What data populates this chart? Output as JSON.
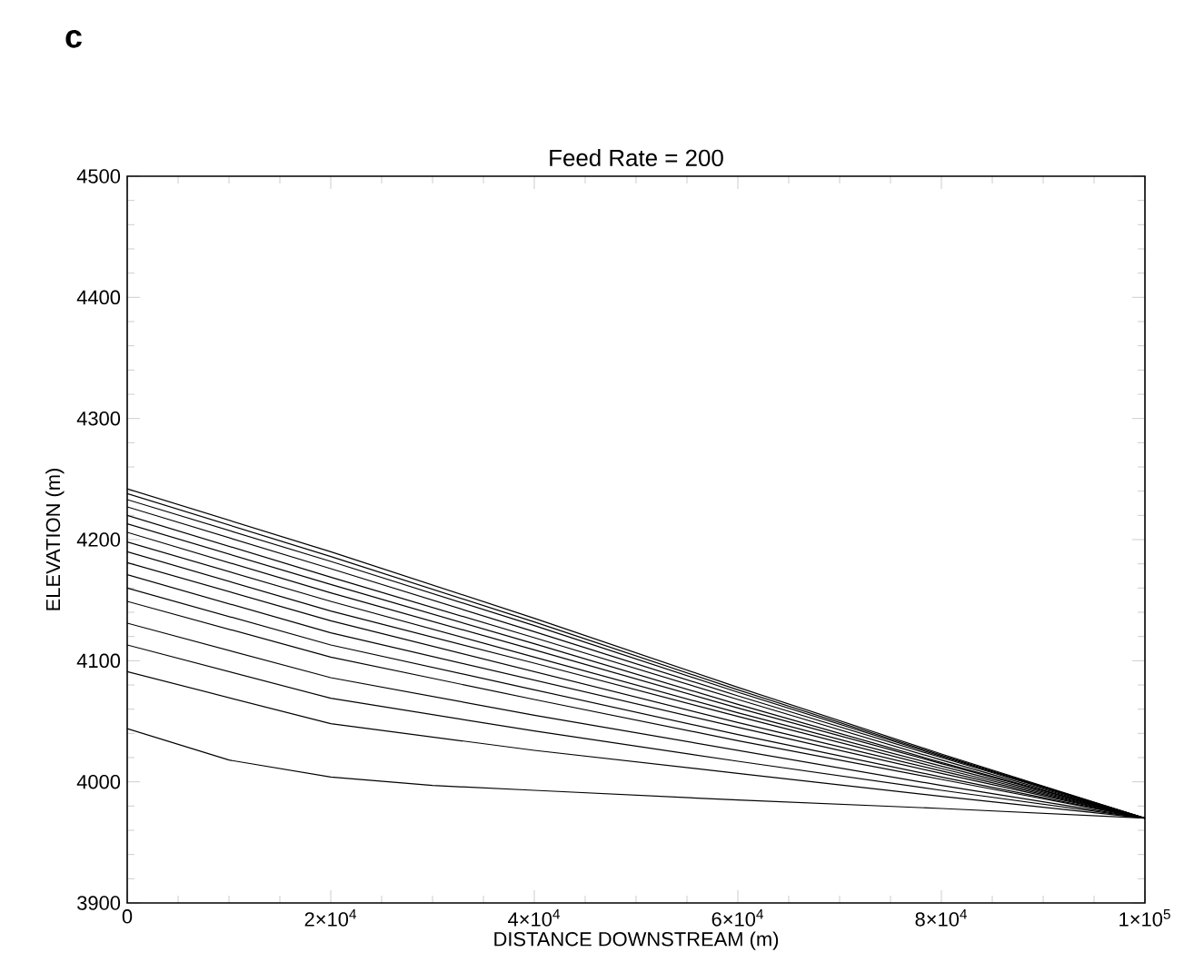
{
  "chart_data": {
    "type": "line",
    "title": "Feed Rate = 200",
    "xlabel": "DISTANCE DOWNSTREAM (m)",
    "ylabel": "ELEVATION (m)",
    "annotations": [
      "c"
    ],
    "x": [
      0,
      20000,
      40000,
      60000,
      80000,
      100000
    ],
    "series": [
      {
        "color": "#000000",
        "x": [
          0,
          10000,
          20000,
          30000,
          40000,
          60000,
          80000,
          100000
        ],
        "values": [
          4044,
          4018,
          4004,
          3997,
          3993,
          3985,
          3978,
          3970
        ]
      },
      {
        "color": "#000000",
        "values": [
          4091,
          4048,
          4026,
          4007,
          3988,
          3970
        ]
      },
      {
        "color": "#000000",
        "values": [
          4113,
          4069,
          4042,
          4017,
          3993,
          3970
        ]
      },
      {
        "color": "#000000",
        "values": [
          4131,
          4086,
          4055,
          4026,
          3997,
          3970
        ]
      },
      {
        "color": "#000000",
        "values": [
          4149,
          4103,
          4068,
          4034,
          4002,
          3970
        ]
      },
      {
        "color": "#000000",
        "values": [
          4160,
          4113,
          4076,
          4039,
          4004,
          3970
        ]
      },
      {
        "color": "#000000",
        "values": [
          4171,
          4123,
          4084,
          4045,
          4007,
          3970
        ]
      },
      {
        "color": "#000000",
        "values": [
          4181,
          4133,
          4091,
          4049,
          4009,
          3970
        ]
      },
      {
        "color": "#000000",
        "values": [
          4190,
          4141,
          4098,
          4054,
          4011,
          3970
        ]
      },
      {
        "color": "#000000",
        "values": [
          4198,
          4149,
          4103,
          4057,
          4013,
          3970
        ]
      },
      {
        "color": "#000000",
        "values": [
          4206,
          4156,
          4109,
          4061,
          4015,
          3970
        ]
      },
      {
        "color": "#000000",
        "values": [
          4213,
          4163,
          4114,
          4064,
          4016,
          3970
        ]
      },
      {
        "color": "#000000",
        "values": [
          4220,
          4169,
          4119,
          4068,
          4018,
          3970
        ]
      },
      {
        "color": "#000000",
        "values": [
          4227,
          4176,
          4124,
          4071,
          4020,
          3970
        ]
      },
      {
        "color": "#000000",
        "values": [
          4233,
          4182,
          4129,
          4074,
          4021,
          3970
        ]
      },
      {
        "color": "#000000",
        "values": [
          4238,
          4186,
          4132,
          4076,
          4022,
          3970
        ]
      },
      {
        "color": "#000000",
        "values": [
          4242,
          4190,
          4135,
          4078,
          4023,
          3970
        ]
      }
    ],
    "xlim": [
      0,
      100000
    ],
    "ylim": [
      3900,
      4500
    ],
    "xticks": [
      0,
      {
        "value": 20000,
        "label": "2×10$^{4}$"
      },
      {
        "value": 40000,
        "label": "4×10$^{4}$"
      },
      {
        "value": 60000,
        "label": "6×10$^{4}$"
      },
      {
        "value": 80000,
        "label": "8×10$^{4}$"
      },
      {
        "value": 100000,
        "label": "1×10$^{5}$"
      }
    ],
    "yticks": [
      3900,
      4000,
      4100,
      4200,
      4300,
      4400,
      4500
    ],
    "grid": false,
    "marker": "none",
    "line_style": "solid"
  }
}
